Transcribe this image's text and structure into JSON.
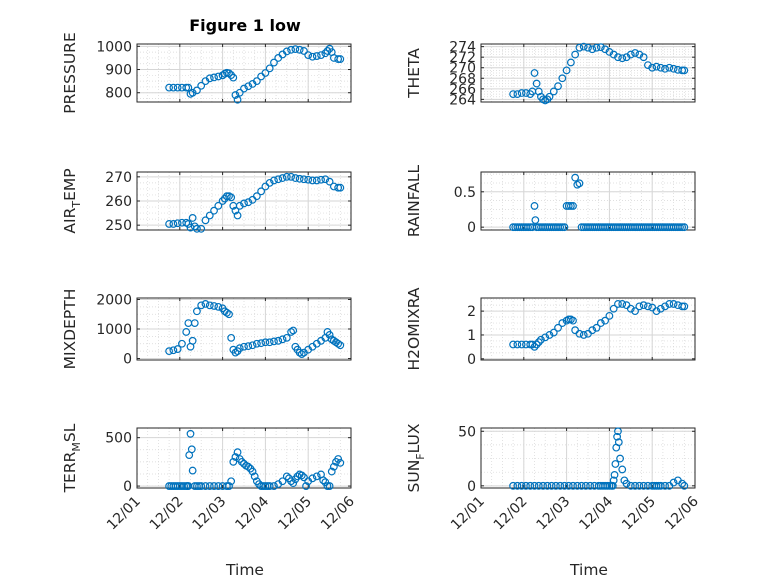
{
  "figure_title": "Figure 1 low",
  "colors": {
    "marker": "#0072BD",
    "grid": "#d6d6d6",
    "axis": "#262626"
  },
  "time_ticks": [
    "12/01",
    "12/02",
    "12/03",
    "12/04",
    "12/05",
    "12/06"
  ],
  "chart_data": [
    {
      "type": "scatter",
      "ylabel": "PRESSURE",
      "title": "Figure 1 low",
      "xlim": [
        1,
        6
      ],
      "ylim": [
        760,
        1010
      ],
      "yticks": [
        800,
        900,
        1000
      ],
      "grid": true,
      "marker": "circle",
      "x": [
        1.75,
        1.85,
        1.95,
        2.05,
        2.15,
        2.2,
        2.25,
        2.3,
        2.4,
        2.5,
        2.6,
        2.7,
        2.8,
        2.9,
        3.0,
        3.05,
        3.1,
        3.15,
        3.2,
        3.25,
        3.3,
        3.35,
        3.4,
        3.5,
        3.6,
        3.7,
        3.8,
        3.9,
        4.0,
        4.1,
        4.2,
        4.3,
        4.4,
        4.5,
        4.6,
        4.7,
        4.8,
        4.9,
        5.0,
        5.1,
        5.2,
        5.3,
        5.4,
        5.45,
        5.5,
        5.55,
        5.6,
        5.7,
        5.75
      ],
      "y": [
        822,
        822,
        822,
        822,
        822,
        822,
        795,
        800,
        810,
        830,
        850,
        862,
        866,
        870,
        875,
        882,
        886,
        884,
        876,
        865,
        790,
        770,
        800,
        818,
        828,
        838,
        850,
        870,
        885,
        905,
        930,
        950,
        965,
        978,
        985,
        988,
        985,
        980,
        962,
        955,
        958,
        962,
        970,
        980,
        990,
        975,
        950,
        945,
        945
      ]
    },
    {
      "type": "scatter",
      "ylabel": "THETA",
      "xlim": [
        1,
        6
      ],
      "ylim": [
        263.5,
        274.5
      ],
      "yticks": [
        264,
        266,
        268,
        270,
        272,
        274
      ],
      "grid": true,
      "marker": "circle",
      "x": [
        1.75,
        1.85,
        1.95,
        2.05,
        2.15,
        2.2,
        2.25,
        2.3,
        2.35,
        2.4,
        2.45,
        2.5,
        2.55,
        2.6,
        2.7,
        2.8,
        2.9,
        3.0,
        3.1,
        3.2,
        3.3,
        3.4,
        3.5,
        3.6,
        3.7,
        3.8,
        3.9,
        4.0,
        4.1,
        4.2,
        4.3,
        4.4,
        4.5,
        4.6,
        4.7,
        4.8,
        4.9,
        5.0,
        5.1,
        5.2,
        5.3,
        5.4,
        5.5,
        5.6,
        5.7,
        5.75
      ],
      "y": [
        265,
        265,
        265.2,
        265.2,
        265,
        265.5,
        269,
        267,
        265.5,
        264.5,
        264,
        263.8,
        264,
        264.5,
        265.5,
        266.5,
        268,
        269.5,
        271,
        272.5,
        273.8,
        274,
        273.8,
        273.5,
        273.8,
        273.9,
        273.5,
        273,
        272.5,
        272,
        271.8,
        272,
        272.5,
        272.8,
        272.5,
        272,
        270.5,
        270,
        270.2,
        270,
        269.8,
        270,
        269.8,
        269.6,
        269.5,
        269.5
      ]
    },
    {
      "type": "scatter",
      "ylabel": "AIR_TEMP",
      "xlim": [
        1,
        6
      ],
      "ylim": [
        248,
        272
      ],
      "yticks": [
        250,
        260,
        270
      ],
      "grid": true,
      "marker": "circle",
      "x": [
        1.75,
        1.85,
        1.95,
        2.05,
        2.15,
        2.2,
        2.25,
        2.3,
        2.35,
        2.4,
        2.5,
        2.6,
        2.7,
        2.8,
        2.9,
        3.0,
        3.05,
        3.1,
        3.15,
        3.2,
        3.25,
        3.3,
        3.35,
        3.4,
        3.5,
        3.6,
        3.7,
        3.8,
        3.9,
        4.0,
        4.1,
        4.2,
        4.3,
        4.4,
        4.5,
        4.6,
        4.7,
        4.8,
        4.9,
        5.0,
        5.1,
        5.2,
        5.3,
        5.4,
        5.5,
        5.6,
        5.7,
        5.75
      ],
      "y": [
        250.5,
        250.5,
        250.8,
        251,
        251,
        250.5,
        249,
        253,
        249.5,
        248.5,
        248.5,
        252,
        254,
        256,
        258,
        260,
        261,
        262,
        262,
        261.5,
        258,
        256,
        254,
        258,
        259,
        259.5,
        260.5,
        262,
        264,
        266,
        267.5,
        268.5,
        269,
        269.5,
        270,
        270,
        269.5,
        269.2,
        269,
        268.8,
        268.5,
        268.5,
        268.8,
        269,
        268,
        266,
        265.5,
        265.5
      ]
    },
    {
      "type": "scatter",
      "ylabel": "RAINFALL",
      "xlim": [
        1,
        6
      ],
      "ylim": [
        -0.04,
        0.78
      ],
      "yticks": [
        0,
        0.5
      ],
      "grid": true,
      "marker": "circle",
      "x": [
        1.75,
        1.8,
        1.85,
        1.9,
        1.95,
        2.0,
        2.05,
        2.1,
        2.15,
        2.2,
        2.25,
        2.27,
        2.3,
        2.35,
        2.4,
        2.45,
        2.5,
        2.55,
        2.6,
        2.65,
        2.7,
        2.75,
        2.8,
        2.85,
        2.9,
        2.95,
        3.0,
        3.05,
        3.1,
        3.15,
        3.2,
        3.25,
        3.3,
        3.35,
        3.4,
        3.45,
        3.5,
        3.55,
        3.6,
        3.65,
        3.7,
        3.75,
        3.8,
        3.85,
        3.9,
        3.95,
        4.0,
        4.05,
        4.1,
        4.15,
        4.2,
        4.25,
        4.3,
        4.35,
        4.4,
        4.45,
        4.5,
        4.55,
        4.6,
        4.65,
        4.7,
        4.75,
        4.8,
        4.85,
        4.9,
        4.95,
        5.0,
        5.05,
        5.1,
        5.15,
        5.2,
        5.25,
        5.3,
        5.35,
        5.4,
        5.45,
        5.5,
        5.55,
        5.6,
        5.65,
        5.7,
        5.75
      ],
      "y": [
        0,
        0,
        0,
        0,
        0,
        0,
        0,
        0,
        0,
        0,
        0.3,
        0.1,
        0,
        0,
        0,
        0,
        0,
        0,
        0,
        0,
        0,
        0,
        0,
        0,
        0,
        0,
        0.3,
        0.3,
        0.3,
        0.3,
        0.7,
        0.6,
        0.62,
        0,
        0,
        0,
        0,
        0,
        0,
        0,
        0,
        0,
        0,
        0,
        0,
        0,
        0,
        0,
        0,
        0,
        0,
        0,
        0,
        0,
        0,
        0,
        0,
        0,
        0,
        0,
        0,
        0,
        0,
        0,
        0,
        0,
        0,
        0,
        0,
        0,
        0,
        0,
        0,
        0,
        0,
        0,
        0,
        0,
        0,
        0,
        0,
        0
      ]
    },
    {
      "type": "scatter",
      "ylabel": "MIXDEPTH",
      "xlim": [
        1,
        6
      ],
      "ylim": [
        -50,
        2050
      ],
      "yticks": [
        0,
        1000,
        2000
      ],
      "grid": true,
      "marker": "circle",
      "x": [
        1.75,
        1.85,
        1.95,
        2.05,
        2.15,
        2.2,
        2.25,
        2.3,
        2.35,
        2.4,
        2.5,
        2.6,
        2.7,
        2.8,
        2.9,
        3.0,
        3.05,
        3.1,
        3.15,
        3.2,
        3.25,
        3.3,
        3.35,
        3.4,
        3.5,
        3.6,
        3.7,
        3.8,
        3.9,
        4.0,
        4.1,
        4.2,
        4.3,
        4.4,
        4.5,
        4.6,
        4.65,
        4.7,
        4.75,
        4.8,
        4.85,
        4.9,
        5.0,
        5.1,
        5.2,
        5.3,
        5.4,
        5.45,
        5.5,
        5.55,
        5.6,
        5.65,
        5.7,
        5.75
      ],
      "y": [
        250,
        280,
        320,
        500,
        900,
        1200,
        400,
        600,
        1200,
        1600,
        1800,
        1850,
        1800,
        1780,
        1750,
        1700,
        1600,
        1550,
        1500,
        700,
        300,
        200,
        250,
        350,
        400,
        420,
        450,
        500,
        520,
        550,
        550,
        580,
        600,
        650,
        700,
        900,
        950,
        400,
        300,
        200,
        150,
        200,
        300,
        400,
        500,
        600,
        700,
        900,
        800,
        650,
        600,
        550,
        500,
        450
      ]
    },
    {
      "type": "scatter",
      "ylabel": "H2OMIXRA",
      "xlim": [
        1,
        6
      ],
      "ylim": [
        -0.05,
        2.55
      ],
      "yticks": [
        0,
        1,
        2
      ],
      "grid": true,
      "marker": "circle",
      "x": [
        1.75,
        1.85,
        1.95,
        2.05,
        2.15,
        2.2,
        2.25,
        2.3,
        2.35,
        2.4,
        2.5,
        2.6,
        2.7,
        2.8,
        2.9,
        3.0,
        3.05,
        3.1,
        3.15,
        3.2,
        3.3,
        3.4,
        3.5,
        3.6,
        3.7,
        3.8,
        3.9,
        4.0,
        4.1,
        4.2,
        4.3,
        4.4,
        4.5,
        4.6,
        4.7,
        4.8,
        4.9,
        5.0,
        5.1,
        5.2,
        5.3,
        5.4,
        5.5,
        5.6,
        5.7,
        5.75
      ],
      "y": [
        0.6,
        0.6,
        0.6,
        0.6,
        0.6,
        0.6,
        0.5,
        0.6,
        0.7,
        0.8,
        0.9,
        1.0,
        1.1,
        1.3,
        1.5,
        1.6,
        1.65,
        1.65,
        1.6,
        1.2,
        1.05,
        1.0,
        1.05,
        1.2,
        1.3,
        1.5,
        1.6,
        1.8,
        2.1,
        2.3,
        2.3,
        2.25,
        2.1,
        2.0,
        2.2,
        2.25,
        2.2,
        2.15,
        2.0,
        2.1,
        2.2,
        2.3,
        2.3,
        2.25,
        2.2,
        2.2
      ]
    },
    {
      "type": "scatter",
      "ylabel": "TERR_MSL",
      "xlim": [
        1,
        6
      ],
      "ylim": [
        -20,
        600
      ],
      "yticks": [
        0,
        500
      ],
      "grid": true,
      "marker": "circle",
      "x": [
        1.75,
        1.8,
        1.85,
        1.9,
        1.95,
        2.0,
        2.05,
        2.1,
        2.15,
        2.18,
        2.2,
        2.22,
        2.25,
        2.28,
        2.3,
        2.35,
        2.4,
        2.45,
        2.5,
        2.6,
        2.7,
        2.8,
        2.9,
        3.0,
        3.1,
        3.15,
        3.2,
        3.25,
        3.3,
        3.35,
        3.4,
        3.45,
        3.5,
        3.55,
        3.6,
        3.65,
        3.7,
        3.75,
        3.8,
        3.85,
        3.9,
        3.95,
        4.0,
        4.05,
        4.1,
        4.2,
        4.3,
        4.4,
        4.5,
        4.55,
        4.6,
        4.65,
        4.7,
        4.75,
        4.8,
        4.85,
        4.9,
        4.95,
        5.0,
        5.1,
        5.2,
        5.3,
        5.35,
        5.4,
        5.45,
        5.5,
        5.55,
        5.6,
        5.65,
        5.7,
        5.75
      ],
      "y": [
        0,
        0,
        0,
        0,
        0,
        0,
        0,
        0,
        0,
        0,
        0,
        320,
        540,
        380,
        160,
        0,
        0,
        0,
        0,
        0,
        0,
        0,
        0,
        0,
        0,
        0,
        50,
        250,
        300,
        350,
        280,
        250,
        230,
        210,
        200,
        180,
        150,
        100,
        50,
        20,
        0,
        0,
        0,
        0,
        0,
        0,
        20,
        50,
        100,
        80,
        50,
        30,
        70,
        100,
        120,
        110,
        90,
        0,
        50,
        80,
        100,
        120,
        60,
        40,
        0,
        0,
        150,
        200,
        250,
        280,
        240
      ]
    },
    {
      "type": "scatter",
      "ylabel": "SUN_FLUX",
      "xlim": [
        1,
        6
      ],
      "ylim": [
        -2,
        53
      ],
      "yticks": [
        0,
        50
      ],
      "grid": true,
      "marker": "circle",
      "x": [
        1.75,
        1.85,
        1.95,
        2.05,
        2.15,
        2.25,
        2.35,
        2.45,
        2.55,
        2.65,
        2.75,
        2.85,
        2.95,
        3.05,
        3.15,
        3.25,
        3.35,
        3.45,
        3.55,
        3.65,
        3.75,
        3.8,
        3.85,
        3.9,
        3.95,
        4.0,
        4.05,
        4.08,
        4.1,
        4.12,
        4.14,
        4.16,
        4.18,
        4.2,
        4.22,
        4.25,
        4.3,
        4.35,
        4.4,
        4.5,
        4.6,
        4.7,
        4.8,
        4.9,
        5.0,
        5.05,
        5.1,
        5.15,
        5.2,
        5.3,
        5.4,
        5.5,
        5.6,
        5.7,
        5.75
      ],
      "y": [
        0,
        0,
        0,
        0,
        0,
        0,
        0,
        0,
        0,
        0,
        0,
        0,
        0,
        0,
        0,
        0,
        0,
        0,
        0,
        0,
        0,
        0,
        0,
        0,
        0,
        0,
        0,
        0,
        5,
        10,
        20,
        35,
        45,
        50,
        40,
        25,
        15,
        5,
        2,
        0,
        0,
        0,
        0,
        0,
        0,
        0,
        0,
        0,
        0,
        0,
        0,
        3,
        5,
        2,
        0
      ]
    }
  ],
  "xlabels": [
    "Time",
    "Time"
  ]
}
